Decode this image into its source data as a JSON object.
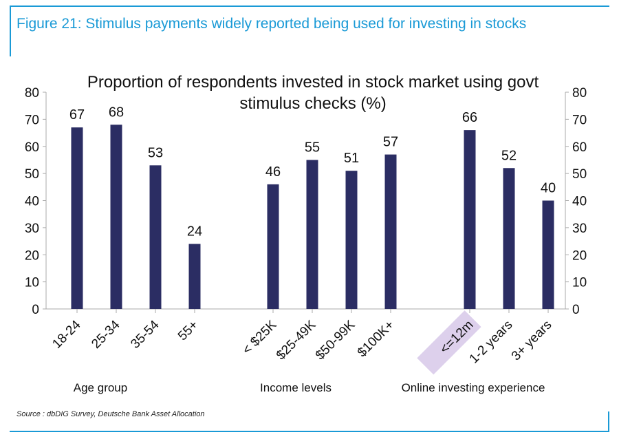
{
  "figure": {
    "title": "Figure 21: Stimulus payments widely reported being used for investing in stocks",
    "source": "Source : dbDIG Survey, Deutsche Bank Asset Allocation"
  },
  "chart_data": {
    "type": "bar",
    "title": "Proportion of respondents invested in stock market using govt stimulus checks (%)",
    "title_lines": [
      "Proportion of respondents invested in stock market using govt",
      "stimulus checks (%)"
    ],
    "ylim": [
      0,
      80
    ],
    "yticks": [
      0,
      10,
      20,
      30,
      40,
      50,
      60,
      70,
      80
    ],
    "grid": false,
    "bar_color": "#2b2d63",
    "highlight_color": "#ddd0ec",
    "groups": [
      {
        "label": "Age group",
        "categories": [
          "18-24",
          "25-34",
          "35-54",
          "55+"
        ],
        "values": [
          67,
          68,
          53,
          24
        ]
      },
      {
        "label": "Income levels",
        "categories": [
          "< $25K",
          "$25-49K",
          "$50-99K",
          "$100K+"
        ],
        "values": [
          46,
          55,
          51,
          57
        ]
      },
      {
        "label": "Online investing experience",
        "categories": [
          "<=12m",
          "1-2 years",
          "3+ years"
        ],
        "values": [
          66,
          52,
          40
        ],
        "highlighted_category": "<=12m"
      }
    ]
  }
}
